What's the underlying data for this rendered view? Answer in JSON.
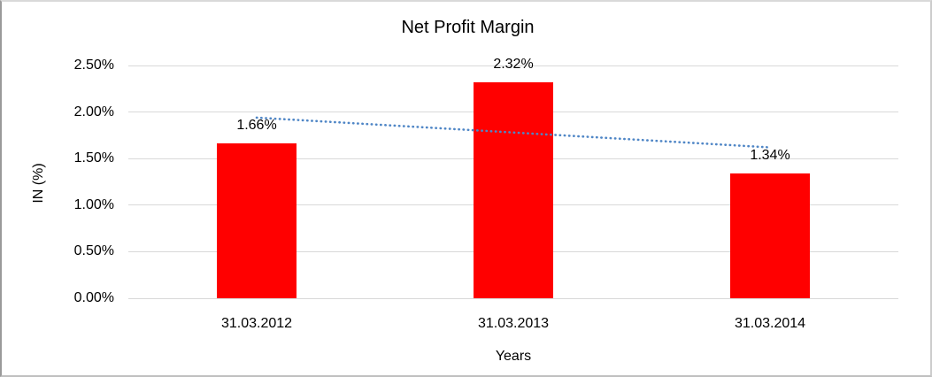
{
  "chart_data": {
    "type": "bar",
    "title": "Net Profit Margin",
    "xlabel": "Years",
    "ylabel": "IN (%)",
    "categories": [
      "31.03.2012",
      "31.03.2013",
      "31.03.2014"
    ],
    "values": [
      1.66,
      2.32,
      1.34
    ],
    "data_labels": [
      "1.66%",
      "2.32%",
      "1.34%"
    ],
    "yticks": [
      "0.00%",
      "0.50%",
      "1.00%",
      "1.50%",
      "2.00%",
      "2.50%"
    ],
    "ytick_values": [
      0.0,
      0.5,
      1.0,
      1.5,
      2.0,
      2.5
    ],
    "ylim": [
      0,
      2.5
    ],
    "grid": "horizontal",
    "legend": "none",
    "bar_color": "#ff0000",
    "gridline_color": "#d9d9d9",
    "text_color": "#000000",
    "trendline": {
      "type": "linear",
      "style": "dotted",
      "color": "#4f86c6",
      "start_value": 1.94,
      "end_value": 1.62
    }
  }
}
